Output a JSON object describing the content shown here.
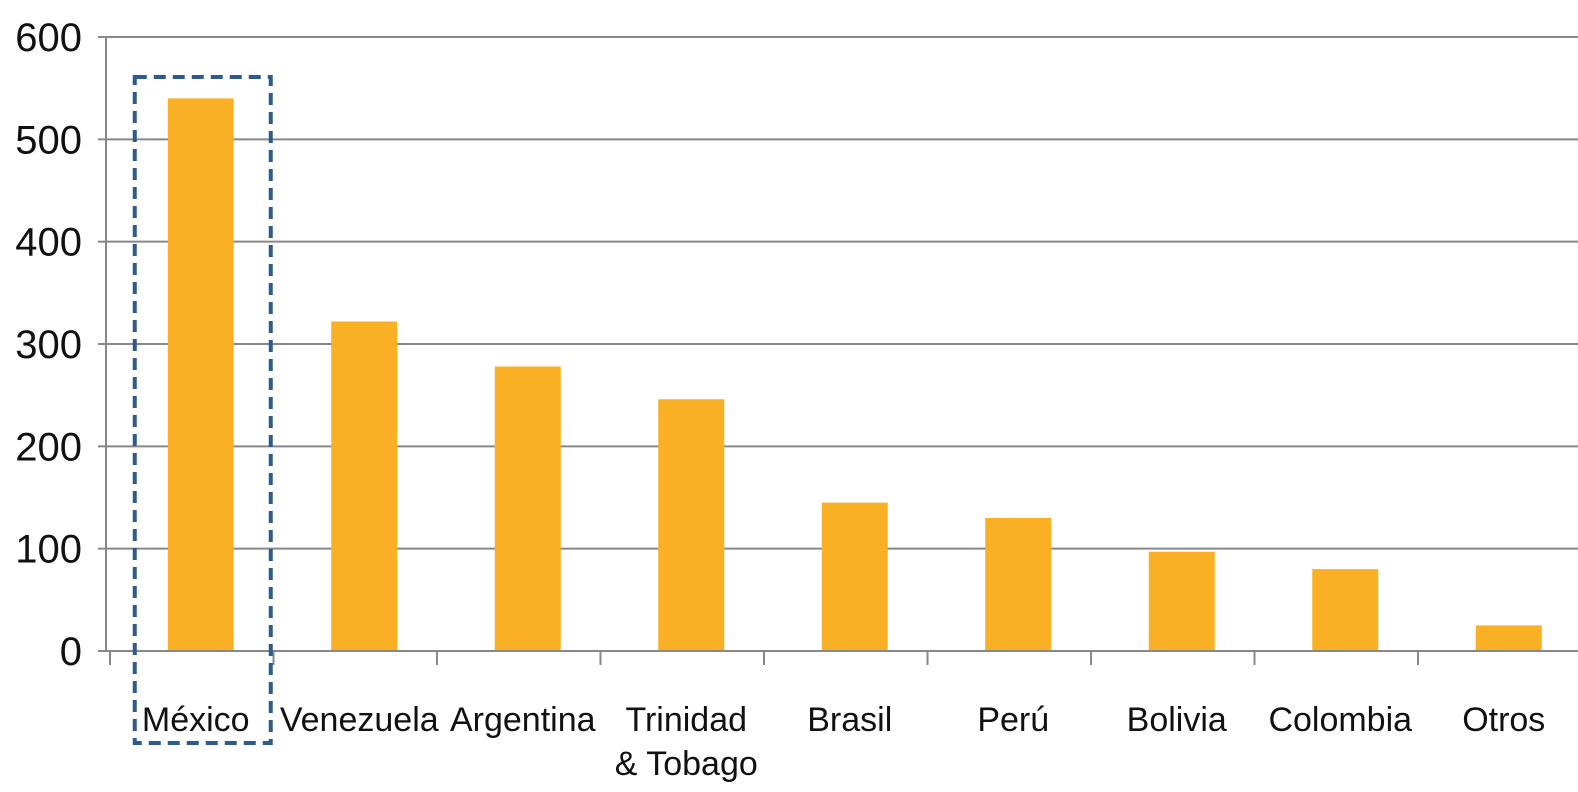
{
  "chart_data": {
    "type": "bar",
    "categories": [
      "México",
      "Venezuela",
      "Argentina",
      "Trinidad\n& Tobago",
      "Brasil",
      "Perú",
      "Bolivia",
      "Colombia",
      "Otros"
    ],
    "values": [
      540,
      322,
      278,
      246,
      145,
      130,
      97,
      80,
      25
    ],
    "title": "",
    "xlabel": "",
    "ylabel": "",
    "ylim": [
      0,
      600
    ],
    "yticks": [
      0,
      100,
      200,
      300,
      400,
      500,
      600
    ],
    "grid": true,
    "highlight_category": "México",
    "colors": {
      "bar": "#F9B024",
      "grid": "#888888",
      "highlight_box": "#2E5A8C",
      "text": "#111111"
    }
  }
}
